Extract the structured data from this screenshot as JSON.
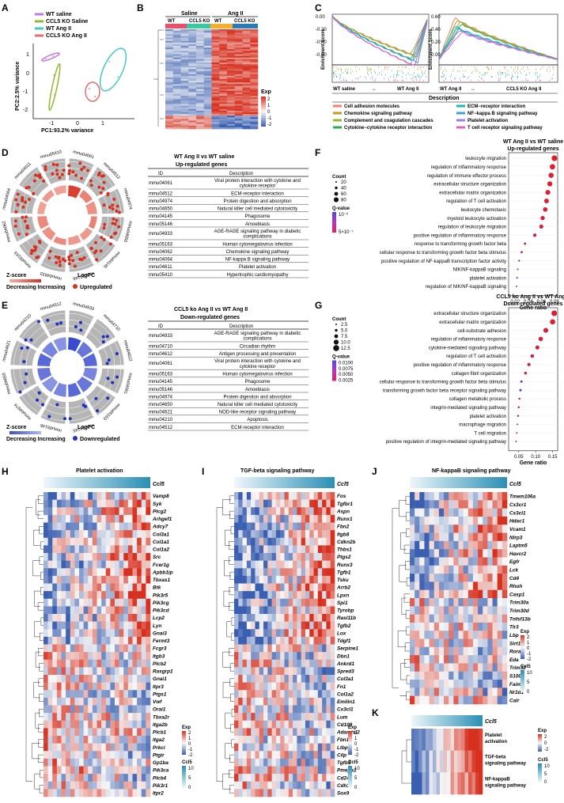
{
  "panels": {
    "A": "A",
    "B": "B",
    "C": "C",
    "D": "D",
    "E": "E",
    "F": "F",
    "G": "G",
    "H": "H",
    "I": "I",
    "J": "J",
    "K": "K"
  },
  "colors": {
    "wt_saline": "#c47be0",
    "ccl5ko_saline": "#8fba2e",
    "wt_angii": "#45c8c8",
    "ccl5ko_angii": "#e86a6a",
    "heat_red": "#d7301f",
    "heat_blue": "#3a5fb0",
    "white": "#f7f7f7"
  },
  "panelA": {
    "legend": [
      "WT saline",
      "CCL5 KO Saline",
      "WT Ang II",
      "CCL5 KO Ang II"
    ],
    "xlabel": "PC1:93.2% variance",
    "ylabel": "PC2:2.5% variance",
    "xticks": [
      "-1",
      "0",
      "1"
    ],
    "yticks": [
      "1",
      "0",
      "-1",
      "-2"
    ]
  },
  "panelB": {
    "groups": [
      "Saline",
      "Ang II"
    ],
    "subgroups": [
      "WT",
      "CCL5 KO",
      "WT",
      "CCL5 KO"
    ],
    "legend_title": "Exp",
    "legend_ticks": [
      "2",
      "1",
      "0",
      "-1",
      "-2"
    ]
  },
  "panelC": {
    "ylabel": "Enrichment Score",
    "left_yticks": [
      "0.00",
      "-0.20",
      "-0.40",
      "-0.60"
    ],
    "right_yticks": [
      "0.60",
      "0.40",
      "0.20",
      "0.00"
    ],
    "left_axis": {
      "from": "WT saline",
      "to": "WT Ang II"
    },
    "right_axis": {
      "from": "WT Ang II",
      "to": "CCL5 KO Ang II"
    },
    "desc_title": "Description",
    "desc_left": [
      {
        "label": "Cell adhesion molecules",
        "color": "#f08070"
      },
      {
        "label": "Chemokine signaling pathway",
        "color": "#c89a20"
      },
      {
        "label": "Complement and coagulation cascades",
        "color": "#8fba2e"
      },
      {
        "label": "Cytokine−cytokine receptor interaction",
        "color": "#2eaa50"
      }
    ],
    "desc_right": [
      {
        "label": "ECM−receptor interaction",
        "color": "#20b8b0"
      },
      {
        "label": "NF−kappa B signaling pathway",
        "color": "#3aa0e0"
      },
      {
        "label": "Platelet activation",
        "color": "#9a80e0"
      },
      {
        "label": "T cell receptor signaling pathway",
        "color": "#e060c0"
      }
    ]
  },
  "panelD": {
    "title1": "WT Ang II vs WT saline",
    "title2": "Up-regulated genes",
    "col_id": "ID",
    "col_desc": "Description",
    "rows": [
      {
        "id": "mmu04061",
        "desc": "Viral protein interaction with cytokine and cytokine receptor"
      },
      {
        "id": "mmu04512",
        "desc": "ECM-receptor interaction"
      },
      {
        "id": "mmu04974",
        "desc": "Protein digestion and absorption"
      },
      {
        "id": "mmu04650",
        "desc": "Natural killer cell mediated cytotoxicity"
      },
      {
        "id": "mmu04145",
        "desc": "Phagosome"
      },
      {
        "id": "mmu05146",
        "desc": "Amoebiasis"
      },
      {
        "id": "mmu04933",
        "desc": "AGE-RAGE signaling pathway in diabetic complications"
      },
      {
        "id": "mmu05163",
        "desc": "Human cytomegalovirus infection"
      },
      {
        "id": "mmu04062",
        "desc": "Chemokine signaling pathway"
      },
      {
        "id": "mmu04064",
        "desc": "NF-kappa B signaling pathway"
      },
      {
        "id": "mmu04611",
        "desc": "Platelet activation"
      },
      {
        "id": "mmu05410",
        "desc": "Hypertrophic cardiomyopathy"
      }
    ],
    "ring_labels": [
      "mmu04061",
      "mmu04512",
      "mmu04974",
      "mmu04650",
      "mmu04145",
      "mmu05146",
      "mmu04933",
      "mmu05163",
      "mmu04062",
      "mmu04064",
      "mmu04611",
      "mmu05410"
    ],
    "zscore_label": "Z-score",
    "logfc_label": "LogFC",
    "decinc": "Decreasing Increasing",
    "reg_label": "Upregulated"
  },
  "panelE": {
    "title1": "CCL5 ko Ang II vs WT Ang II",
    "title2": "Down-regulated genes",
    "col_id": "ID",
    "col_desc": "Description",
    "rows": [
      {
        "id": "mmu04933",
        "desc": "AGE-RAGE signaling pathway in diabetic complications"
      },
      {
        "id": "mmu04710",
        "desc": "Circadian rhythm"
      },
      {
        "id": "mmu04612",
        "desc": "Antigen processing and presentation"
      },
      {
        "id": "mmu04061",
        "desc": "Viral protein interaction with cytokine and cytokine receptor"
      },
      {
        "id": "mmu05163",
        "desc": "Human cytomegalovirus infection"
      },
      {
        "id": "mmu04145",
        "desc": "Phagosome"
      },
      {
        "id": "mmu05146",
        "desc": "Amoebiasis"
      },
      {
        "id": "mmu04974",
        "desc": "Protein digestion and absorption"
      },
      {
        "id": "mmu04650",
        "desc": "Natural killer cell mediated cytotoxicity"
      },
      {
        "id": "mmu04621",
        "desc": "NOD-like receptor signaling pathway"
      },
      {
        "id": "mmu04210",
        "desc": "Apoptosis"
      },
      {
        "id": "mmu04512",
        "desc": "ECM-receptor interaction"
      }
    ],
    "ring_labels": [
      "mmu04933",
      "mmu04710",
      "mmu04612",
      "mmu04061",
      "mmu05163",
      "mmu04145",
      "mmu05146",
      "mmu04974",
      "mmu04650",
      "mmu04621",
      "mmu04210",
      "mmu04512"
    ],
    "zscore_label": "Z-score",
    "logfc_label": "LogFC",
    "decinc": "Decreasing Increasing",
    "reg_label": "Downregulated"
  },
  "chart_data": [
    {
      "id": "F",
      "type": "scatter",
      "title": "WT Ang II vs WT saline",
      "subtitle": "Up-regulated genes",
      "xlabel": "Gene ratio",
      "xticks": [
        "0.02",
        "0.04",
        "0.06",
        "0.08"
      ],
      "xlim": [
        0.01,
        0.085
      ],
      "count_title": "Count",
      "count_ticks": [
        "20",
        "40",
        "60",
        "80"
      ],
      "q_title": "Q-value",
      "q_ticks": [
        "10⁻⁶",
        "5×10⁻⁷"
      ],
      "terms": [
        "leukocyte migration",
        "regulation of inflammatory response",
        "regulation of immune effector process",
        "extracellular structure organization",
        "extracellular matrix organization",
        "regulation of T cell activation",
        "leukocyte chemotaxis",
        "myeloid leukocyte activation",
        "regulation of leukocyte migration",
        "positive regulation of inflammatory response",
        "response to transforming growth factor beta",
        "cellular response to transforming growth factor beta stimulus",
        "positive regulation of NF-kappaB transcription factor activity",
        "NIK/NF-kappaB signaling",
        "platelet activation",
        "regulation of NIK/NF-kappaB signaling"
      ],
      "values": [
        0.08,
        0.077,
        0.075,
        0.073,
        0.07,
        0.068,
        0.066,
        0.062,
        0.06,
        0.05,
        0.035,
        0.03,
        0.026,
        0.024,
        0.023,
        0.022
      ],
      "counts": [
        80,
        75,
        72,
        70,
        68,
        65,
        62,
        58,
        56,
        45,
        30,
        28,
        22,
        20,
        20,
        18
      ],
      "color_scale": [
        0,
        0,
        0.05,
        0.05,
        0.05,
        0.1,
        0.1,
        0.1,
        0.15,
        0.2,
        0.5,
        0.6,
        0.7,
        0.8,
        0.85,
        0.95
      ]
    },
    {
      "id": "G",
      "type": "scatter",
      "title": "CCL5 ko Ang II vs WT Ang II",
      "subtitle": "Down-regulated genes",
      "xlabel": "Gene ratio",
      "xticks": [
        "0.05",
        "0.10",
        "0.15"
      ],
      "xlim": [
        0.02,
        0.165
      ],
      "count_title": "Count",
      "count_ticks": [
        "2.5",
        "5.0",
        "7.5",
        "10.0",
        "12.5"
      ],
      "q_title": "Q-value",
      "q_ticks": [
        "0.0100",
        "0.0075",
        "0.0050",
        "0.0025"
      ],
      "terms": [
        "extracellular structure organization",
        "extracellular matrix organization",
        "cell-substrate adhesion",
        "regulation of inflammatory response",
        "cytokine-mediated signaling pathway",
        "regulation of T cell activation",
        "positive regulation of inflammatory response",
        "collagen fibril organization",
        "cellular response to transforming growth factor beta stimulus",
        "transforming growth factor beta receptor signaling pathway",
        "collagen metabolic process",
        "integrin-mediated signaling pathway",
        "platelet activation",
        "macrophage migration",
        "T cell migration",
        "positive regulation of integrin-mediated signaling pathway"
      ],
      "values": [
        0.155,
        0.15,
        0.13,
        0.115,
        0.105,
        0.09,
        0.08,
        0.07,
        0.058,
        0.055,
        0.052,
        0.05,
        0.048,
        0.046,
        0.044,
        0.042
      ],
      "counts": [
        13,
        12,
        11,
        10,
        9,
        8,
        7,
        6,
        5,
        5,
        4,
        4,
        4,
        3,
        3,
        3
      ],
      "color_scale": [
        0.05,
        0.05,
        0.1,
        0.1,
        0.15,
        0.15,
        0.2,
        0.25,
        0.7,
        0.75,
        0.3,
        0.35,
        0.4,
        0.5,
        0.45,
        0.55
      ]
    }
  ],
  "panelH": {
    "title": "Platelet activation",
    "gene_label": "Ccl5",
    "legend_title": "Exp",
    "legend_ticks": [
      "2",
      "1",
      "0",
      "-1",
      "-2"
    ],
    "ccl5_title": "Ccl5",
    "ccl5_ticks": [
      "10",
      "5",
      "0"
    ],
    "genes": [
      "Vamp8",
      "Syk",
      "Plcg2",
      "Arhgef1",
      "Adcy7",
      "Col3a1",
      "Col1a1",
      "Col1a2",
      "Src",
      "Fcer1g",
      "Apbb1ip",
      "Tbxas1",
      "Btk",
      "Pik3r5",
      "Pik3cg",
      "Pik3cd",
      "Lcp2",
      "Lyn",
      "Gnai3",
      "Fermt3",
      "Fcgr3",
      "Itgb3",
      "Plcb2",
      "Rasgrp1",
      "Gnai1",
      "Itpr3",
      "Ptgs1",
      "Vwf",
      "Orai1",
      "Tbxa2r",
      "Itga2b",
      "Plcb1",
      "Itga2",
      "Prkci",
      "Ptgir",
      "Gp1ba",
      "Pik3ca",
      "Plcb4",
      "Pik3r1",
      "Itpr2"
    ]
  },
  "panelI": {
    "title": "TGF-beta signaling pathway",
    "gene_label": "Ccl5",
    "legend_title": "Exp",
    "legend_ticks": [
      "2",
      "1",
      "0",
      "-1",
      "-2"
    ],
    "ccl5_title": "Ccl5",
    "ccl5_ticks": [
      "10",
      "5",
      "0"
    ],
    "genes": [
      "Fos",
      "Tgfbr1",
      "Aspn",
      "Runx1",
      "Fbn2",
      "Itgb8",
      "Cdkn2b",
      "Thbs1",
      "Ptgs2",
      "Runx3",
      "Tgfb1",
      "Tsku",
      "Arrb2",
      "Lpxn",
      "Spi1",
      "Tyrobp",
      "Rasl11b",
      "Tgfb2",
      "Lox",
      "Tdgf1",
      "Serpine1",
      "Dbn1",
      "Ankrd1",
      "Spred3",
      "Col3a1",
      "Fn1",
      "Col1a2",
      "Emilin1",
      "Cx3cl1",
      "Lum",
      "Cd109",
      "Adamtsl2",
      "Fbn1",
      "Ltbp3",
      "Cilp",
      "Tgfb3",
      "Pmepa1",
      "Cd24a",
      "Cdh3",
      "Sox9"
    ]
  },
  "panelJ": {
    "title": "NF-kappaB signaling pathway",
    "gene_label": "Ccl5",
    "legend_title": "Exp",
    "legend_ticks": [
      "2",
      "1",
      "0",
      "-1",
      "-2"
    ],
    "ccl5_title": "Ccl5",
    "ccl5_ticks": [
      "10",
      "5",
      "0"
    ],
    "genes": [
      "Tmem106a",
      "Cx3cr1",
      "Cx3cl1",
      "Hdac1",
      "Vcam1",
      "Nlrp3",
      "Laptm5",
      "Havcr2",
      "Egfr",
      "Lck",
      "Cd4",
      "Rhoh",
      "Casp1",
      "Trim30a",
      "Trim30d",
      "Tnfsf13b",
      "Tlr3",
      "Lbp",
      "Sirt1",
      "Rora",
      "Eda",
      "Trim32",
      "S100b",
      "Faim",
      "Nr1d1",
      "Calr"
    ]
  },
  "panelK": {
    "gene_label": "Ccl5",
    "rows": [
      "Platelet activation",
      "TGF-beta signaling pathway",
      "NF-kappaB signaling pathway"
    ],
    "legend_title": "Exp",
    "legend_ticks": [
      "2",
      "0",
      "-2"
    ],
    "ccl5_title": "Ccl5",
    "ccl5_ticks": [
      "10",
      "5",
      "0"
    ]
  }
}
